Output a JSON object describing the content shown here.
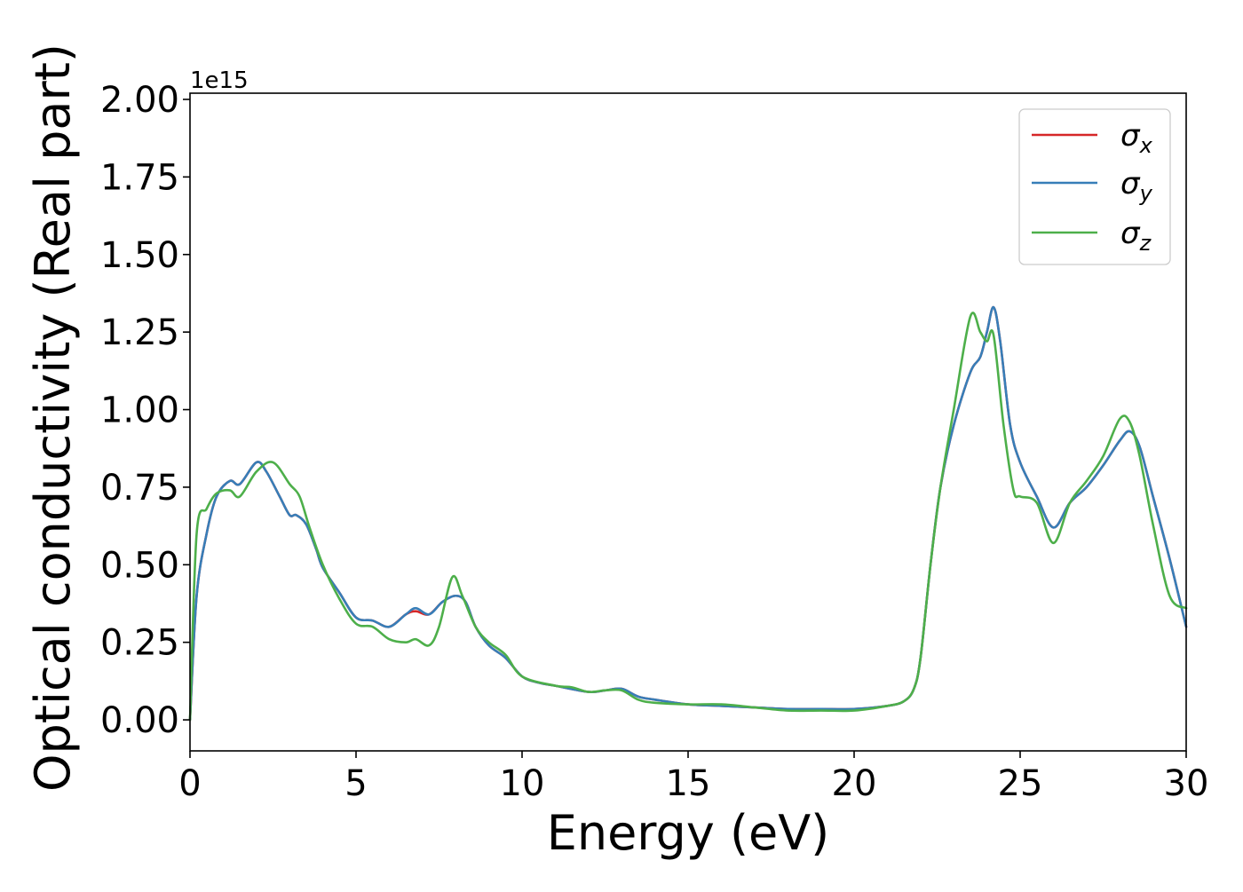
{
  "chart_data": {
    "type": "line",
    "title": "",
    "xlabel": "Energy (eV)",
    "ylabel": "Optical conductivity (Real part)",
    "y_offset_text": "1e15",
    "xlim": [
      0,
      30
    ],
    "ylim": [
      -0.1,
      2.02
    ],
    "xticks": [
      0,
      5,
      10,
      15,
      20,
      25,
      30
    ],
    "xtick_labels": [
      "0",
      "5",
      "10",
      "15",
      "20",
      "25",
      "30"
    ],
    "yticks": [
      0.0,
      0.25,
      0.5,
      0.75,
      1.0,
      1.25,
      1.5,
      1.75,
      2.0
    ],
    "ytick_labels": [
      "0.00",
      "0.25",
      "0.50",
      "0.75",
      "1.00",
      "1.25",
      "1.50",
      "1.75",
      "2.00"
    ],
    "grid": false,
    "legend_position": "top-right",
    "series": [
      {
        "name": "σx",
        "legend_main": "σ",
        "legend_sub": "x",
        "color": "#d62728",
        "x": [
          0,
          0.2,
          0.5,
          0.8,
          1.2,
          1.5,
          2.0,
          2.3,
          2.7,
          3.0,
          3.2,
          3.5,
          3.8,
          4.0,
          4.5,
          5.0,
          5.5,
          6.0,
          6.5,
          6.8,
          7.2,
          7.6,
          8.0,
          8.3,
          8.6,
          9.0,
          9.5,
          10.0,
          10.5,
          11.0,
          12.0,
          12.5,
          13.0,
          13.5,
          14.0,
          15.0,
          16.0,
          17.0,
          18.0,
          19.0,
          20.0,
          21.0,
          21.5,
          21.8,
          22.0,
          22.3,
          22.6,
          23.0,
          23.5,
          23.8,
          24.0,
          24.2,
          24.4,
          24.7,
          25.0,
          25.5,
          26.0,
          26.5,
          27.0,
          27.5,
          28.0,
          28.3,
          28.6,
          29.0,
          29.5,
          30.0
        ],
        "values": [
          0.0,
          0.4,
          0.6,
          0.72,
          0.77,
          0.76,
          0.83,
          0.8,
          0.72,
          0.66,
          0.66,
          0.63,
          0.55,
          0.49,
          0.41,
          0.33,
          0.32,
          0.3,
          0.34,
          0.35,
          0.34,
          0.38,
          0.4,
          0.38,
          0.3,
          0.24,
          0.2,
          0.14,
          0.12,
          0.11,
          0.09,
          0.095,
          0.1,
          0.075,
          0.065,
          0.05,
          0.045,
          0.04,
          0.035,
          0.035,
          0.035,
          0.045,
          0.06,
          0.1,
          0.2,
          0.5,
          0.75,
          0.95,
          1.12,
          1.17,
          1.25,
          1.33,
          1.22,
          0.95,
          0.83,
          0.72,
          0.62,
          0.7,
          0.75,
          0.82,
          0.9,
          0.93,
          0.88,
          0.72,
          0.52,
          0.3
        ]
      },
      {
        "name": "σy",
        "legend_main": "σ",
        "legend_sub": "y",
        "color": "#377eb8",
        "x": [
          0,
          0.2,
          0.5,
          0.8,
          1.2,
          1.5,
          2.0,
          2.3,
          2.7,
          3.0,
          3.2,
          3.5,
          3.8,
          4.0,
          4.5,
          5.0,
          5.5,
          6.0,
          6.5,
          6.8,
          7.2,
          7.6,
          8.0,
          8.3,
          8.6,
          9.0,
          9.5,
          10.0,
          10.5,
          11.0,
          12.0,
          12.5,
          13.0,
          13.5,
          14.0,
          15.0,
          16.0,
          17.0,
          18.0,
          19.0,
          20.0,
          21.0,
          21.5,
          21.8,
          22.0,
          22.3,
          22.6,
          23.0,
          23.5,
          23.8,
          24.0,
          24.2,
          24.4,
          24.7,
          25.0,
          25.5,
          26.0,
          26.5,
          27.0,
          27.5,
          28.0,
          28.3,
          28.6,
          29.0,
          29.5,
          30.0
        ],
        "values": [
          0.0,
          0.4,
          0.6,
          0.72,
          0.77,
          0.76,
          0.83,
          0.8,
          0.72,
          0.66,
          0.66,
          0.63,
          0.55,
          0.49,
          0.41,
          0.33,
          0.32,
          0.3,
          0.34,
          0.36,
          0.34,
          0.38,
          0.4,
          0.38,
          0.3,
          0.24,
          0.2,
          0.14,
          0.12,
          0.11,
          0.09,
          0.095,
          0.1,
          0.075,
          0.065,
          0.05,
          0.045,
          0.04,
          0.035,
          0.035,
          0.035,
          0.045,
          0.06,
          0.1,
          0.2,
          0.5,
          0.75,
          0.95,
          1.12,
          1.17,
          1.25,
          1.33,
          1.22,
          0.95,
          0.83,
          0.72,
          0.62,
          0.7,
          0.75,
          0.82,
          0.9,
          0.93,
          0.88,
          0.72,
          0.52,
          0.3
        ]
      },
      {
        "name": "σz",
        "legend_main": "σ",
        "legend_sub": "z",
        "color": "#4daf4a",
        "x": [
          0,
          0.2,
          0.5,
          0.8,
          1.2,
          1.5,
          2.0,
          2.5,
          3.0,
          3.3,
          3.6,
          4.0,
          4.5,
          5.0,
          5.5,
          6.0,
          6.5,
          6.8,
          7.2,
          7.5,
          7.9,
          8.2,
          8.6,
          9.0,
          9.5,
          10.0,
          11.0,
          11.5,
          12.0,
          12.5,
          13.0,
          13.5,
          14.0,
          15.0,
          16.0,
          17.0,
          18.0,
          19.0,
          20.0,
          21.0,
          21.5,
          21.8,
          22.0,
          22.3,
          22.6,
          23.0,
          23.5,
          23.8,
          24.0,
          24.2,
          24.5,
          24.8,
          25.0,
          25.5,
          26.0,
          26.5,
          27.0,
          27.5,
          28.0,
          28.3,
          28.6,
          29.0,
          29.5,
          30.0
        ],
        "values": [
          0.0,
          0.6,
          0.68,
          0.73,
          0.74,
          0.72,
          0.8,
          0.83,
          0.76,
          0.72,
          0.62,
          0.5,
          0.39,
          0.31,
          0.3,
          0.26,
          0.25,
          0.26,
          0.24,
          0.3,
          0.46,
          0.4,
          0.3,
          0.25,
          0.21,
          0.14,
          0.11,
          0.105,
          0.09,
          0.095,
          0.095,
          0.065,
          0.055,
          0.05,
          0.05,
          0.04,
          0.03,
          0.03,
          0.03,
          0.045,
          0.06,
          0.1,
          0.2,
          0.5,
          0.75,
          1.0,
          1.3,
          1.25,
          1.22,
          1.24,
          0.95,
          0.74,
          0.72,
          0.7,
          0.57,
          0.7,
          0.77,
          0.85,
          0.97,
          0.96,
          0.85,
          0.63,
          0.4,
          0.36
        ]
      }
    ]
  }
}
